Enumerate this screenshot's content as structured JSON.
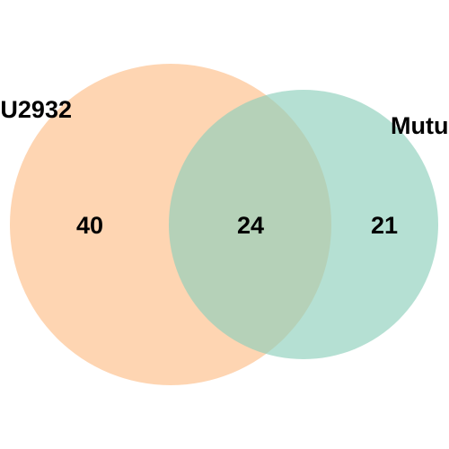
{
  "diagram": {
    "type": "venn",
    "sets": [
      {
        "label": "U2932",
        "color": "#fdbf88",
        "only_count": "40"
      },
      {
        "label": "Mutu",
        "color": "#8ecfbc",
        "only_count": "21"
      }
    ],
    "intersection_count": "24",
    "fill_opacity": 0.65
  }
}
